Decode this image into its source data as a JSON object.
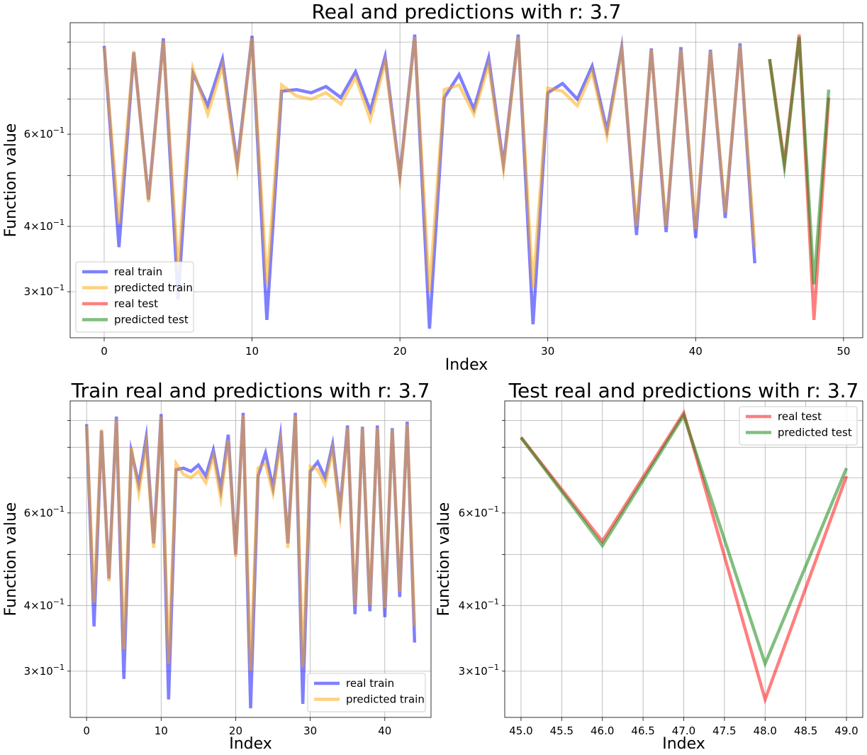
{
  "charts": [
    {
      "id": "full",
      "title": "Real and predictions with r: 3.7",
      "xlabel": "Index",
      "ylabel": "Function value",
      "xlim": [
        -2.3,
        51.3
      ],
      "ylim": [
        0.245,
        0.98
      ],
      "xticks": [
        {
          "v": 0,
          "label": "0"
        },
        {
          "v": 10,
          "label": "10"
        },
        {
          "v": 20,
          "label": "20"
        },
        {
          "v": 30,
          "label": "30"
        },
        {
          "v": 40,
          "label": "40"
        },
        {
          "v": 50,
          "label": "50"
        }
      ],
      "ytick_labels": [
        {
          "v": 0.3,
          "base": "3×10",
          "exp": "−1"
        },
        {
          "v": 0.4,
          "base": "4×10",
          "exp": "−1"
        },
        {
          "v": 0.6,
          "base": "6×10",
          "exp": "−1"
        }
      ],
      "legend_pos": "lower-left",
      "series": [
        "real_train",
        "pred_train",
        "real_test",
        "pred_test"
      ]
    },
    {
      "id": "train",
      "title": "Train real and predictions with r: 3.7",
      "xlabel": "Index",
      "ylabel": "Function value",
      "xlim": [
        -2.2,
        46.2
      ],
      "ylim": [
        0.245,
        0.98
      ],
      "xticks": [
        {
          "v": 0,
          "label": "0"
        },
        {
          "v": 10,
          "label": "10"
        },
        {
          "v": 20,
          "label": "20"
        },
        {
          "v": 30,
          "label": "30"
        },
        {
          "v": 40,
          "label": "40"
        }
      ],
      "ytick_labels": [
        {
          "v": 0.3,
          "base": "3×10",
          "exp": "−1"
        },
        {
          "v": 0.4,
          "base": "4×10",
          "exp": "−1"
        },
        {
          "v": 0.6,
          "base": "6×10",
          "exp": "−1"
        }
      ],
      "legend_pos": "lower-right",
      "series": [
        "real_train",
        "pred_train"
      ]
    },
    {
      "id": "test",
      "title": "Test real and predictions with r: 3.7",
      "xlabel": "Index",
      "ylabel": "Function value",
      "xlim": [
        44.8,
        49.2
      ],
      "ylim": [
        0.245,
        0.98
      ],
      "xticks": [
        {
          "v": 45.0,
          "label": "45.0"
        },
        {
          "v": 45.5,
          "label": "45.5"
        },
        {
          "v": 46.0,
          "label": "46.0"
        },
        {
          "v": 46.5,
          "label": "46.5"
        },
        {
          "v": 47.0,
          "label": "47.0"
        },
        {
          "v": 47.5,
          "label": "47.5"
        },
        {
          "v": 48.0,
          "label": "48.0"
        },
        {
          "v": 48.5,
          "label": "48.5"
        },
        {
          "v": 49.0,
          "label": "49.0"
        }
      ],
      "ytick_labels": [
        {
          "v": 0.3,
          "base": "3×10",
          "exp": "−1"
        },
        {
          "v": 0.4,
          "base": "4×10",
          "exp": "−1"
        },
        {
          "v": 0.6,
          "base": "6×10",
          "exp": "−1"
        }
      ],
      "legend_pos": "upper-right",
      "series": [
        "real_test",
        "pred_test"
      ]
    }
  ],
  "series_defs": {
    "real_train": {
      "name": "real train",
      "color": "#0000ff"
    },
    "pred_train": {
      "name": "predicted train",
      "color": "#ffa500"
    },
    "real_test": {
      "name": "real test",
      "color": "#ff0000"
    },
    "pred_test": {
      "name": "predicted test",
      "color": "#008000"
    }
  },
  "chart_data": {
    "type": "line",
    "scale_y": "log",
    "ylim": [
      0.245,
      0.98
    ],
    "series": [
      {
        "name": "real train",
        "x_start": 0,
        "values": [
          0.885,
          0.365,
          0.86,
          0.45,
          0.915,
          0.29,
          0.785,
          0.68,
          0.835,
          0.525,
          0.925,
          0.265,
          0.725,
          0.73,
          0.72,
          0.74,
          0.705,
          0.79,
          0.665,
          0.845,
          0.5,
          0.93,
          0.255,
          0.705,
          0.78,
          0.67,
          0.84,
          0.525,
          0.93,
          0.26,
          0.72,
          0.75,
          0.7,
          0.81,
          0.61,
          0.88,
          0.385,
          0.875,
          0.39,
          0.88,
          0.38,
          0.87,
          0.415,
          0.895,
          0.34
        ]
      },
      {
        "name": "predicted train",
        "x_start": 0,
        "values": [
          0.88,
          0.405,
          0.865,
          0.445,
          0.905,
          0.33,
          0.8,
          0.655,
          0.81,
          0.515,
          0.915,
          0.31,
          0.745,
          0.71,
          0.7,
          0.72,
          0.685,
          0.77,
          0.64,
          0.825,
          0.495,
          0.92,
          0.3,
          0.73,
          0.745,
          0.655,
          0.815,
          0.515,
          0.92,
          0.305,
          0.735,
          0.725,
          0.68,
          0.79,
          0.595,
          0.87,
          0.4,
          0.87,
          0.4,
          0.87,
          0.395,
          0.865,
          0.425,
          0.885,
          0.365
        ]
      },
      {
        "name": "real test",
        "x_start": 45,
        "values": [
          0.835,
          0.53,
          0.93,
          0.265,
          0.705
        ]
      },
      {
        "name": "predicted test",
        "x_start": 45,
        "values": [
          0.835,
          0.52,
          0.92,
          0.31,
          0.73
        ]
      }
    ]
  }
}
